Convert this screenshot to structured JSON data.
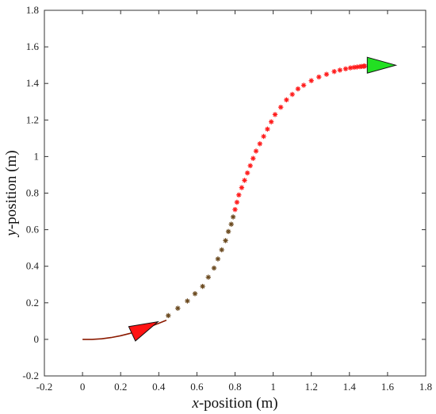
{
  "chart_data": {
    "type": "scatter",
    "xlabel_var": "x",
    "xlabel_rest": "-position (m)",
    "ylabel_var": "y",
    "ylabel_rest": "-position (m)",
    "xlim": [
      -0.2,
      1.8
    ],
    "ylim": [
      -0.2,
      1.8
    ],
    "xticks": [
      "-0.2",
      "0",
      "0.2",
      "0.4",
      "0.6",
      "0.8",
      "1",
      "1.2",
      "1.4",
      "1.6",
      "1.8"
    ],
    "yticks": [
      "-0.2",
      "0",
      "0.2",
      "0.4",
      "0.6",
      "0.8",
      "1",
      "1.2",
      "1.4",
      "1.6",
      "1.8"
    ],
    "grid": false,
    "series": [
      {
        "marker": "line",
        "color": "#8b1a00",
        "x": [
          0.0,
          0.05,
          0.1,
          0.15,
          0.2,
          0.25,
          0.3,
          0.35,
          0.4,
          0.44
        ],
        "y": [
          0.0,
          0.0,
          0.003,
          0.01,
          0.02,
          0.033,
          0.05,
          0.068,
          0.088,
          0.105
        ]
      },
      {
        "marker": "asterisk",
        "color": "#6b4a1f",
        "x": [
          0.45,
          0.5,
          0.55,
          0.59,
          0.63,
          0.66,
          0.69,
          0.71,
          0.73,
          0.75,
          0.765,
          0.78,
          0.79
        ],
        "y": [
          0.13,
          0.17,
          0.21,
          0.25,
          0.29,
          0.34,
          0.39,
          0.44,
          0.49,
          0.54,
          0.59,
          0.63,
          0.67
        ]
      },
      {
        "marker": "asterisk",
        "color": "#ff1a1a",
        "x": [
          0.8,
          0.81,
          0.82,
          0.835,
          0.85,
          0.865,
          0.88,
          0.895,
          0.91,
          0.93,
          0.95,
          0.97,
          0.99,
          1.01,
          1.04,
          1.07,
          1.1,
          1.13,
          1.16,
          1.2,
          1.24,
          1.28,
          1.32,
          1.35,
          1.38,
          1.405,
          1.425,
          1.44,
          1.455,
          1.465,
          1.475,
          1.48
        ],
        "y": [
          0.71,
          0.75,
          0.79,
          0.83,
          0.87,
          0.91,
          0.95,
          0.99,
          1.03,
          1.07,
          1.11,
          1.15,
          1.19,
          1.23,
          1.27,
          1.31,
          1.34,
          1.37,
          1.39,
          1.415,
          1.435,
          1.45,
          1.465,
          1.473,
          1.48,
          1.485,
          1.488,
          1.49,
          1.492,
          1.493,
          1.494,
          1.495
        ]
      }
    ],
    "arrows": [
      {
        "x": 0.32,
        "y": 0.06,
        "angle_deg": 25,
        "fill": "#ff1414"
      },
      {
        "x": 1.56,
        "y": 1.5,
        "angle_deg": 0,
        "fill": "#22e022"
      }
    ]
  }
}
